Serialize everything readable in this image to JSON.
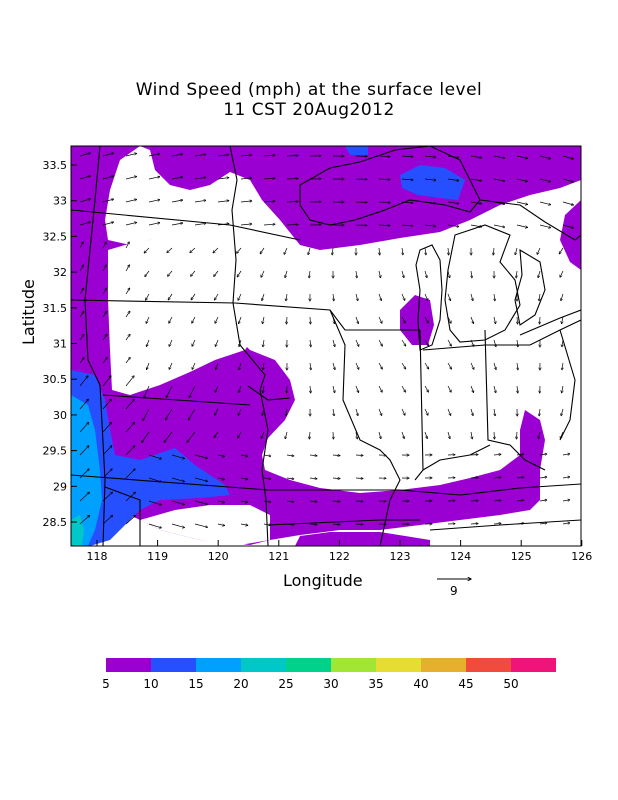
{
  "title_line1": "Wind Speed (mph) at the surface level",
  "title_line2": "11 CST 20Aug2012",
  "xlabel": "Longitude",
  "ylabel": "Latitude",
  "reference_vector_label": "9",
  "x_ticks": [
    "118",
    "119",
    "120",
    "121",
    "122",
    "123",
    "124",
    "125",
    "126"
  ],
  "y_ticks": [
    "33.5",
    "33",
    "32.5",
    "32",
    "31.5",
    "31",
    "30.5",
    "30",
    "29.5",
    "29",
    "28.5"
  ],
  "legend": {
    "labels": [
      "5",
      "10",
      "15",
      "20",
      "25",
      "30",
      "35",
      "40",
      "45",
      "50"
    ],
    "colors": [
      "#9b00d2",
      "#2650ff",
      "#00a0ff",
      "#00c8c8",
      "#00d28c",
      "#a0e632",
      "#e6dc32",
      "#e6af2d",
      "#f04b3c",
      "#f0147a"
    ]
  },
  "chart_data": {
    "type": "heatmap",
    "title": "Wind Speed (mph) at the surface level",
    "subtitle": "11 CST 20Aug2012",
    "xlabel": "Longitude",
    "ylabel": "Latitude",
    "xlim": [
      117.6,
      126.1
    ],
    "ylim": [
      28.2,
      33.8
    ],
    "colorbar_breaks": [
      5,
      10,
      15,
      20,
      25,
      30,
      35,
      40,
      45,
      50
    ],
    "colors": {
      "background_below_5": "#ffffff",
      "5-10": "#9b00d2",
      "10-15": "#2650ff",
      "15-20": "#00a0ff",
      "20-25": "#00c8c8"
    },
    "vector_reference": 9
  }
}
